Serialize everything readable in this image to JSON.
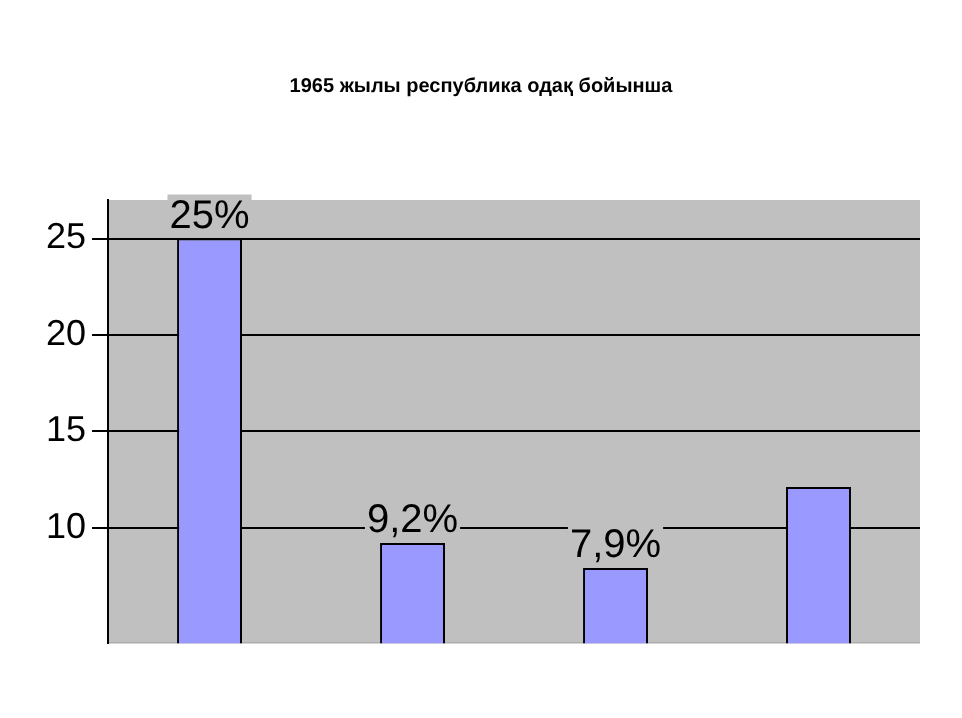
{
  "chart_data": {
    "type": "bar",
    "title": "1965 жылы  республика одақ бойынша",
    "categories": [
      null,
      null,
      null,
      null
    ],
    "values": [
      25,
      9.2,
      7.9,
      12.1
    ],
    "value_labels": [
      "25%",
      "9,2%",
      "7,9%",
      null
    ],
    "color": "#9999ff",
    "ylim": [
      4,
      27
    ],
    "yticks": [
      10,
      15,
      20,
      25
    ],
    "grid": "y",
    "legend": false
  }
}
